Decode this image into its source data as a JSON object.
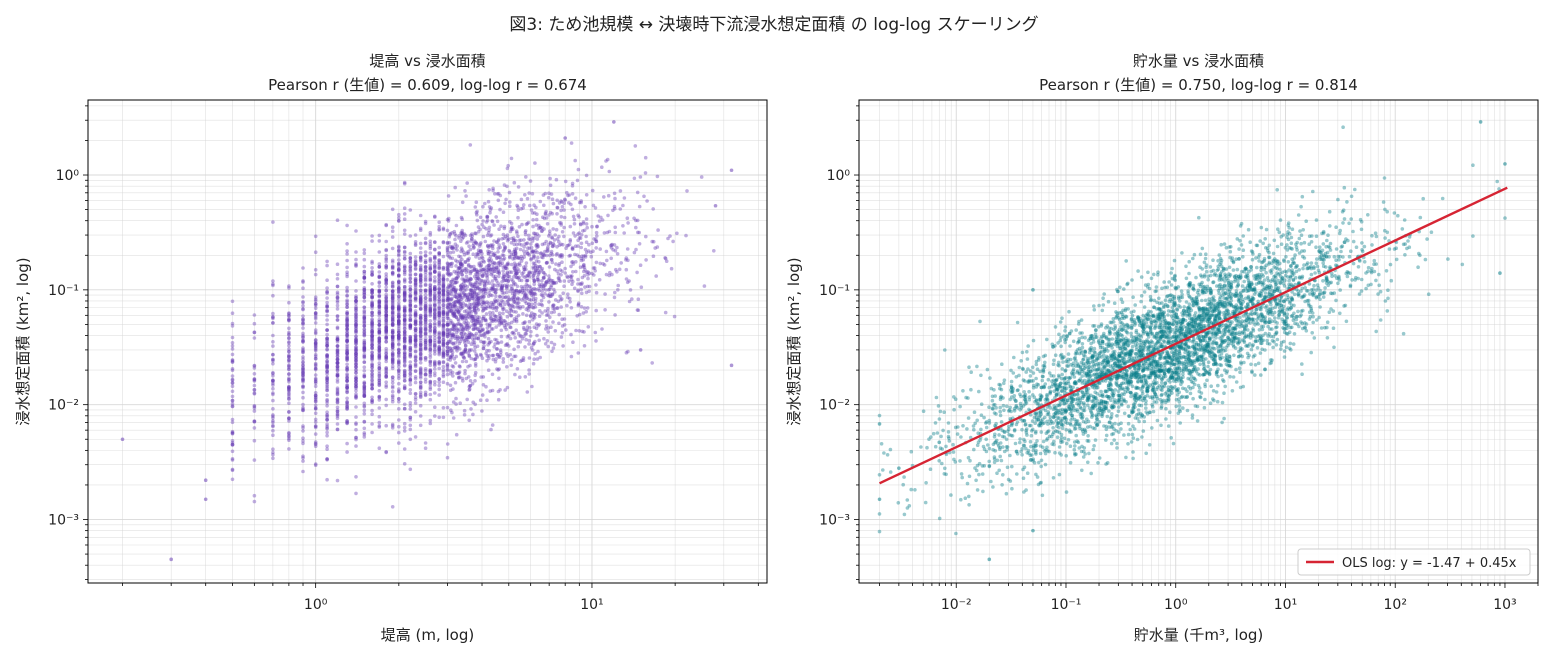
{
  "figure": {
    "suptitle": "図3: ため池規模 ↔ 決壊時下流浸水想定面積 の log-log スケーリング"
  },
  "colors": {
    "left_points": "#6a3fb5",
    "right_points": "#0a7f8a",
    "fit_line": "#d62433",
    "grid": "#d9d9d9",
    "axis": "#000000"
  },
  "chart_data": [
    {
      "type": "scatter",
      "title": "堤高 vs 浸水面積",
      "subtitle": "Pearson r (生値) = 0.609, log-log r = 0.674",
      "xlabel": "堤高 (m, log)",
      "ylabel": "浸水想定面積 (km², log)",
      "xscale": "log",
      "yscale": "log",
      "xlim": [
        0.15,
        43
      ],
      "ylim": [
        0.00028,
        4.5
      ],
      "xticks": [
        1,
        10
      ],
      "xtick_labels": [
        "10^0",
        "10^1"
      ],
      "yticks": [
        0.001,
        0.01,
        0.1,
        1
      ],
      "ytick_labels": [
        "10^-3",
        "10^-2",
        "10^-1",
        "10^0"
      ],
      "grid": true,
      "point_color": "#6a3fb5",
      "n_points_approx": 4500,
      "x_dist": {
        "log10_mean": 0.45,
        "log10_sd": 0.3
      },
      "y_model": {
        "intercept": -1.62,
        "slope": 0.93,
        "noise_sd": 0.38
      },
      "sample_points": [
        {
          "x": 0.2,
          "y": 0.005
        },
        {
          "x": 0.3,
          "y": 0.00045
        },
        {
          "x": 0.4,
          "y": 0.0022
        },
        {
          "x": 0.4,
          "y": 0.0015
        },
        {
          "x": 8.0,
          "y": 2.1
        },
        {
          "x": 12.0,
          "y": 2.9
        },
        {
          "x": 32.0,
          "y": 1.1
        },
        {
          "x": 32.0,
          "y": 0.022
        },
        {
          "x": 28.0,
          "y": 0.54
        },
        {
          "x": 15.0,
          "y": 0.03
        }
      ]
    },
    {
      "type": "scatter",
      "title": "貯水量 vs 浸水面積",
      "subtitle": "Pearson r (生値) = 0.750, log-log r = 0.814",
      "xlabel": "貯水量 (千m³, log)",
      "ylabel": "浸水想定面積 (km², log)",
      "xscale": "log",
      "yscale": "log",
      "xlim": [
        0.0013,
        2000
      ],
      "ylim": [
        0.00028,
        4.5
      ],
      "xticks": [
        0.01,
        0.1,
        1,
        10,
        100,
        1000
      ],
      "xtick_labels": [
        "10^-2",
        "10^-1",
        "10^0",
        "10^1",
        "10^2",
        "10^3"
      ],
      "yticks": [
        0.001,
        0.01,
        0.1,
        1
      ],
      "ytick_labels": [
        "10^-3",
        "10^-2",
        "10^-1",
        "10^0"
      ],
      "grid": true,
      "point_color": "#0a7f8a",
      "n_points_approx": 4500,
      "x_dist": {
        "log10_mean": -0.1,
        "log10_sd": 0.85
      },
      "y_model": {
        "intercept": -1.47,
        "slope": 0.45,
        "noise_sd": 0.28
      },
      "fit_line": {
        "label": "OLS log: y = -1.47 + 0.45x",
        "intercept": -1.47,
        "slope": 0.45,
        "x_range": [
          0.002,
          1050
        ],
        "color": "#d62433"
      },
      "legend_position": "lower-right",
      "sample_points": [
        {
          "x": 0.002,
          "y": 0.0068
        },
        {
          "x": 0.002,
          "y": 0.0015
        },
        {
          "x": 0.003,
          "y": 0.0028
        },
        {
          "x": 0.007,
          "y": 0.0047
        },
        {
          "x": 0.02,
          "y": 0.00045
        },
        {
          "x": 0.05,
          "y": 0.0008
        },
        {
          "x": 0.05,
          "y": 0.1
        },
        {
          "x": 600,
          "y": 2.9
        },
        {
          "x": 1000,
          "y": 1.25
        },
        {
          "x": 900,
          "y": 0.14
        }
      ]
    }
  ]
}
